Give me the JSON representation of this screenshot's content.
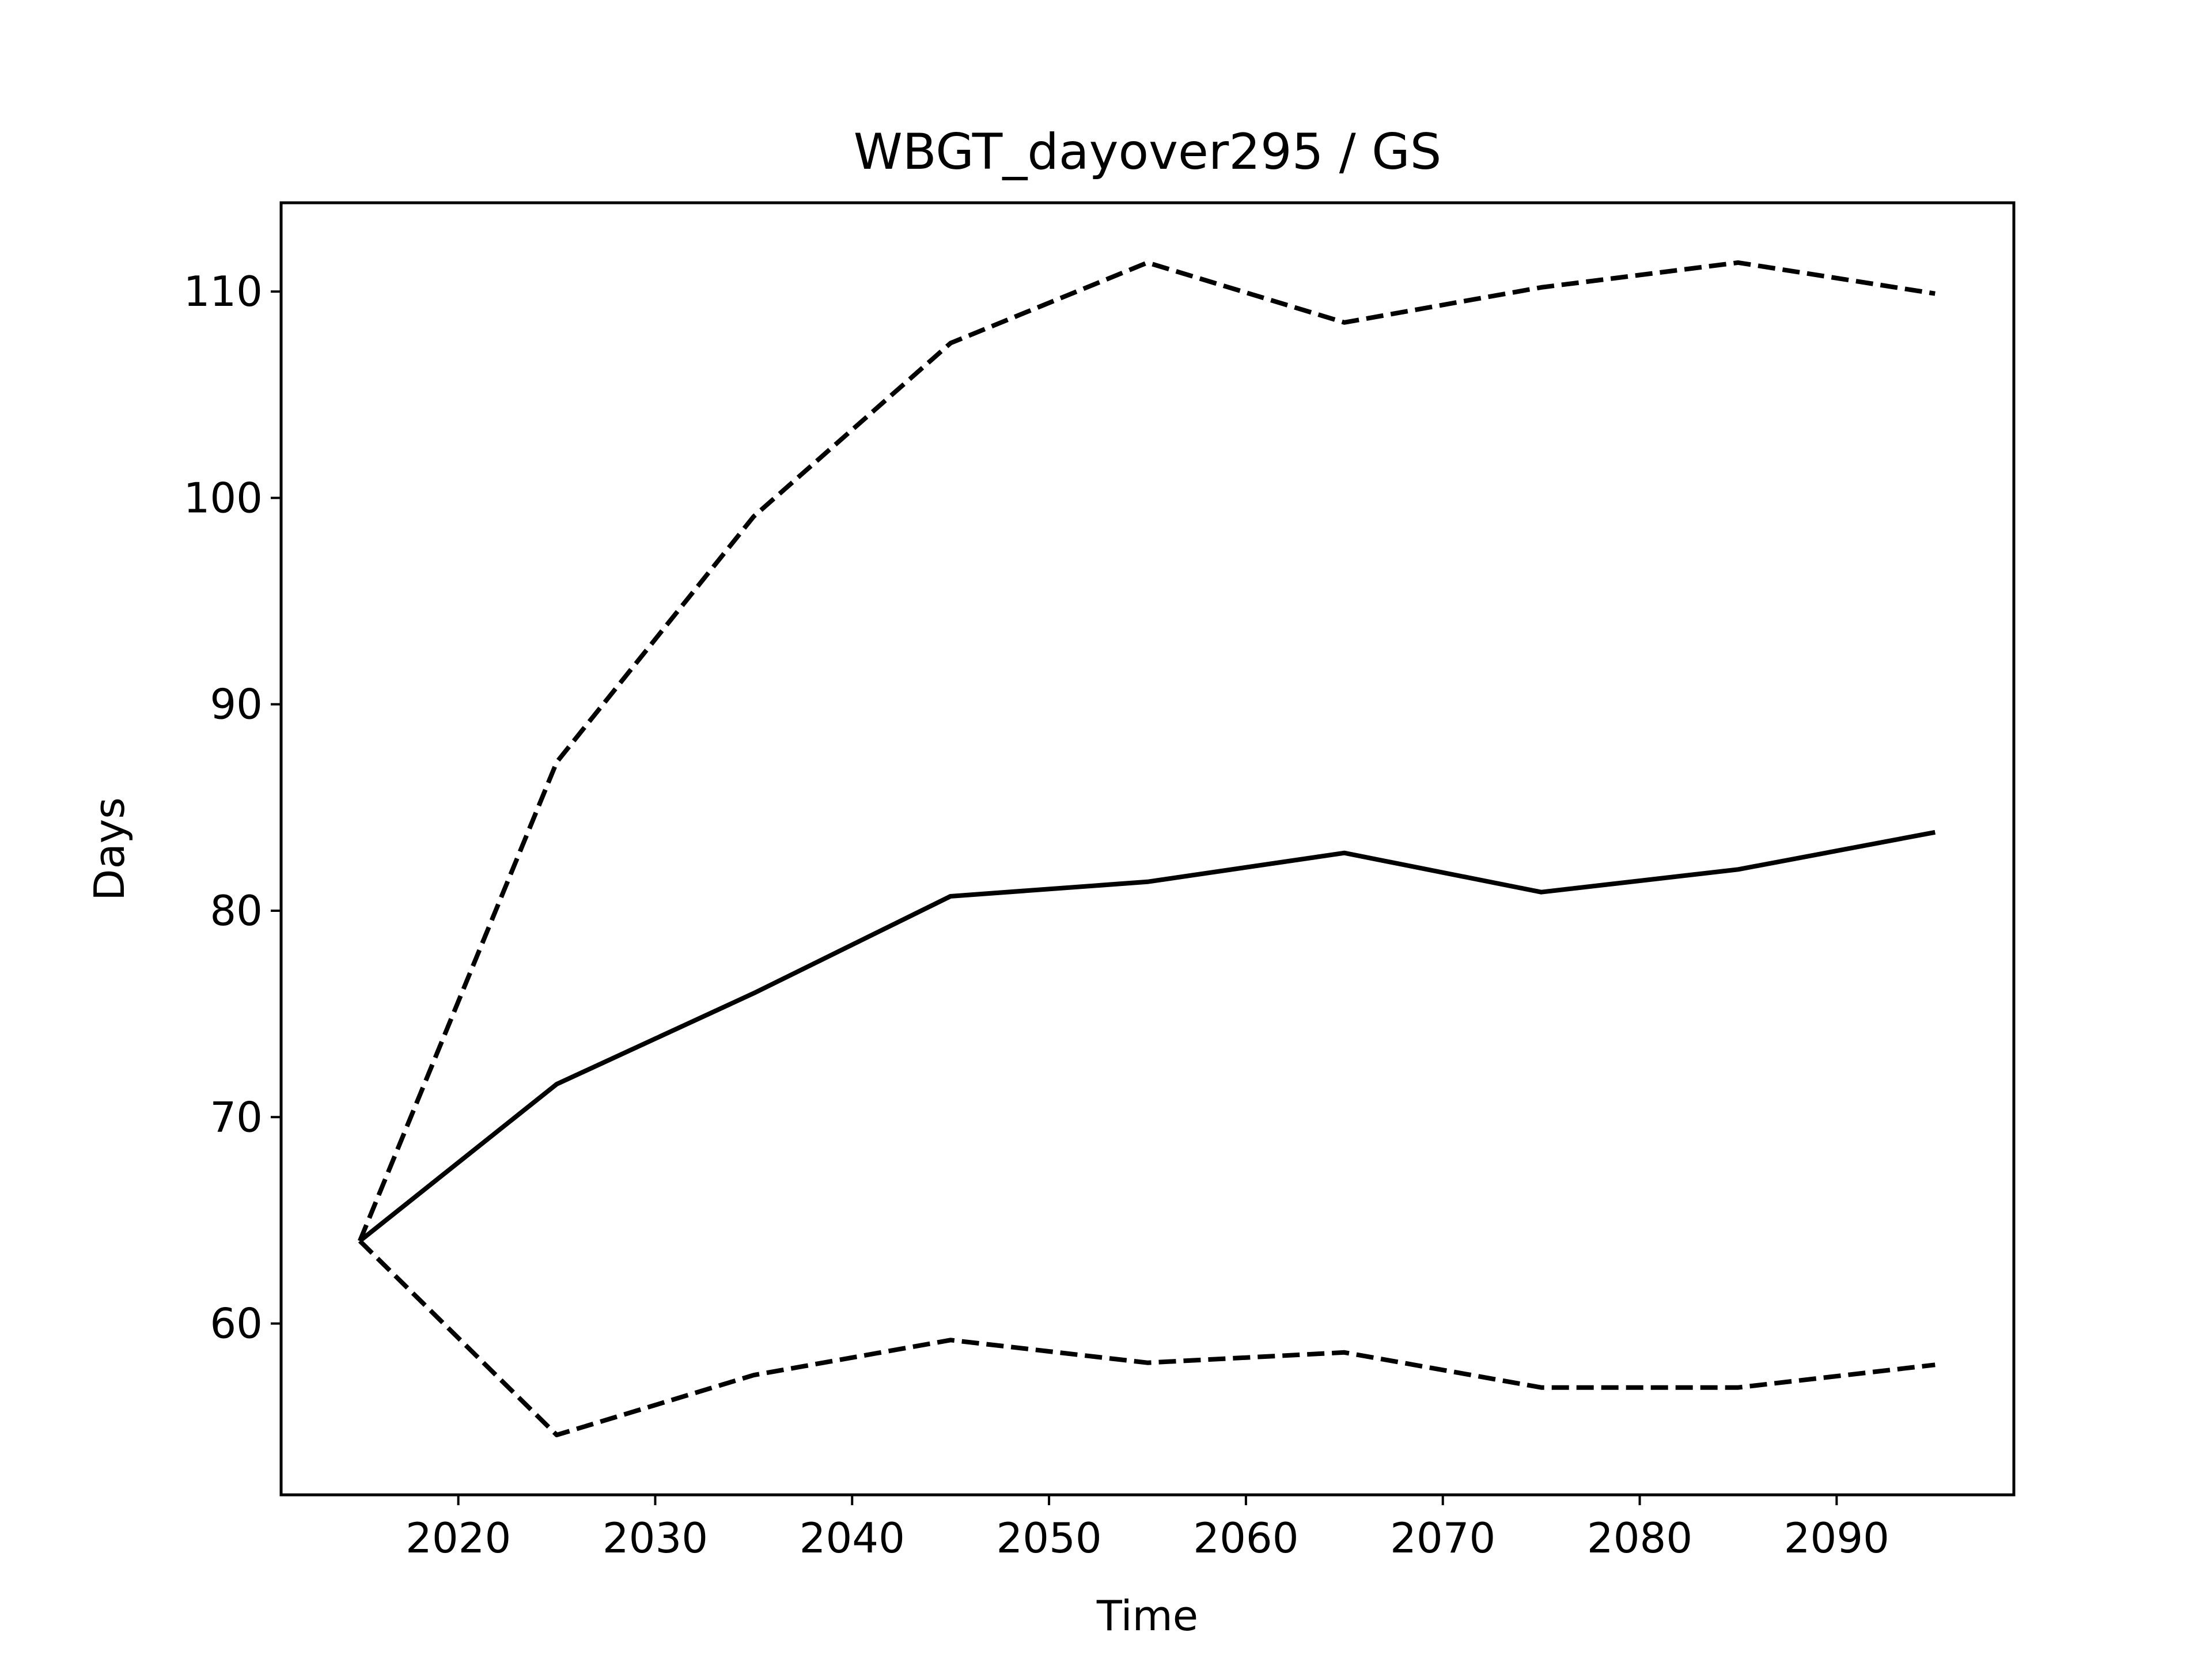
{
  "chart_data": {
    "type": "line",
    "title": "WBGT_dayover295 / GS",
    "xlabel": "Time",
    "ylabel": "Days",
    "xlim": [
      2011,
      2099
    ],
    "ylim": [
      51.7,
      114.3
    ],
    "xticks": [
      2020,
      2030,
      2040,
      2050,
      2060,
      2070,
      2080,
      2090
    ],
    "yticks": [
      60,
      70,
      80,
      90,
      100,
      110
    ],
    "grid": false,
    "legend": false,
    "x": [
      2015,
      2025,
      2035,
      2045,
      2055,
      2065,
      2075,
      2085,
      2095
    ],
    "series": [
      {
        "style": "solid",
        "values": [
          64.0,
          71.6,
          76.0,
          80.7,
          81.4,
          82.8,
          80.9,
          82.0,
          83.8
        ]
      },
      {
        "style": "dashed",
        "values": [
          64.0,
          87.2,
          99.1,
          107.5,
          111.4,
          108.5,
          110.2,
          111.4,
          109.9
        ]
      },
      {
        "style": "dashed",
        "values": [
          64.0,
          54.6,
          57.5,
          59.2,
          58.1,
          58.6,
          56.9,
          56.9,
          58.0
        ]
      }
    ]
  }
}
